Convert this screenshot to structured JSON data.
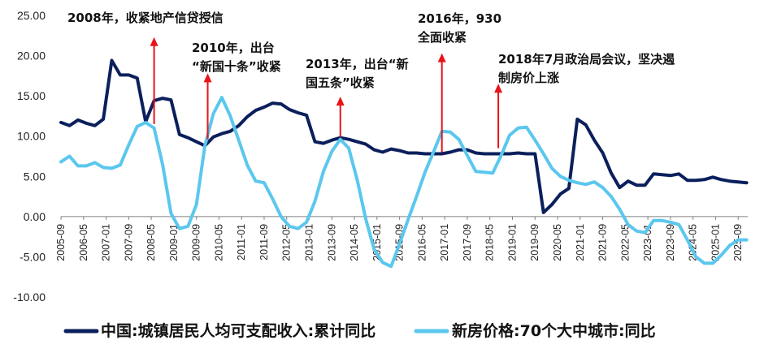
{
  "colors": {
    "series_dark": "#0b1f5c",
    "series_light": "#5bc7ee",
    "arrow": "#e8141a",
    "axis": "#7f7f7f",
    "text": "#111111"
  },
  "chart_data": {
    "type": "line",
    "title": "",
    "xlabel": "",
    "ylabel": "",
    "ylim": [
      -10,
      25
    ],
    "grid": false,
    "legend_position": "bottom",
    "y_ticks": [
      "25.00",
      "20.00",
      "15.00",
      "10.00",
      "5.00",
      "0.00",
      "-5.00",
      "-10.00"
    ],
    "y_tick_values": [
      25,
      20,
      15,
      10,
      5,
      0,
      -5,
      -10
    ],
    "x_ticks": [
      "2005-09",
      "2006-05",
      "2007-01",
      "2007-09",
      "2008-05",
      "2009-01",
      "2009-09",
      "2010-05",
      "2011-01",
      "2011-09",
      "2012-05",
      "2013-01",
      "2013-09",
      "2014-05",
      "2015-01",
      "2015-09",
      "2016-05",
      "2017-01",
      "2017-09",
      "2018-05",
      "2019-01",
      "2019-09",
      "2020-05",
      "2021-01",
      "2021-09",
      "2022-05",
      "2023-01",
      "2023-09",
      "2024-05",
      "2025-01",
      "2025-09"
    ],
    "x_range": [
      2005.666,
      2025.95
    ],
    "series": [
      {
        "name": "中国:城镇居民人均可支配收入:累计同比",
        "color": "#0b1f5c",
        "x": [
          2005.666,
          2005.917,
          2006.167,
          2006.417,
          2006.667,
          2006.917,
          2007.167,
          2007.417,
          2007.667,
          2007.917,
          2008.167,
          2008.417,
          2008.667,
          2008.917,
          2009.167,
          2009.417,
          2009.667,
          2009.917,
          2010.167,
          2010.417,
          2010.667,
          2010.917,
          2011.167,
          2011.417,
          2011.667,
          2011.917,
          2012.167,
          2012.417,
          2012.667,
          2012.917,
          2013.167,
          2013.417,
          2013.667,
          2013.917,
          2014.167,
          2014.417,
          2014.667,
          2014.917,
          2015.167,
          2015.417,
          2015.667,
          2015.917,
          2016.167,
          2016.417,
          2016.667,
          2016.917,
          2017.167,
          2017.417,
          2017.667,
          2017.917,
          2018.167,
          2018.417,
          2018.667,
          2018.917,
          2019.167,
          2019.417,
          2019.667,
          2019.917,
          2020.167,
          2020.417,
          2020.667,
          2020.917,
          2021.167,
          2021.417,
          2021.667,
          2021.917,
          2022.167,
          2022.417,
          2022.667,
          2022.917,
          2023.167,
          2023.417,
          2023.667,
          2023.917,
          2024.167,
          2024.417,
          2024.667,
          2024.917,
          2025.167,
          2025.417,
          2025.667,
          2025.917
        ],
        "y": [
          11.7,
          11.3,
          12.0,
          11.6,
          11.3,
          12.1,
          19.4,
          17.6,
          17.6,
          17.2,
          11.8,
          14.4,
          14.7,
          14.5,
          10.2,
          9.8,
          9.3,
          8.8,
          9.9,
          10.3,
          10.6,
          11.3,
          12.4,
          13.2,
          13.6,
          14.1,
          14.0,
          13.3,
          12.9,
          12.6,
          9.3,
          9.1,
          9.5,
          9.8,
          9.6,
          9.3,
          9.0,
          8.3,
          8.0,
          8.4,
          8.2,
          7.9,
          7.9,
          7.8,
          7.8,
          7.8,
          8.0,
          8.3,
          8.3,
          7.9,
          7.8,
          7.8,
          7.8,
          7.8,
          7.9,
          7.8,
          7.8,
          0.5,
          1.5,
          2.8,
          3.5,
          12.1,
          11.4,
          9.5,
          7.9,
          5.4,
          3.6,
          4.4,
          3.9,
          3.9,
          5.3,
          5.2,
          5.1,
          5.3,
          4.5,
          4.5,
          4.6,
          4.9,
          4.6,
          4.4,
          4.3,
          4.2
        ]
      },
      {
        "name": "新房价格:70个大中城市:同比",
        "color": "#5bc7ee",
        "x": [
          2005.666,
          2005.917,
          2006.167,
          2006.417,
          2006.667,
          2006.917,
          2007.167,
          2007.417,
          2007.667,
          2007.917,
          2008.167,
          2008.417,
          2008.667,
          2008.917,
          2009.167,
          2009.417,
          2009.667,
          2009.917,
          2010.167,
          2010.417,
          2010.667,
          2010.917,
          2011.167,
          2011.417,
          2011.667,
          2011.917,
          2012.167,
          2012.417,
          2012.667,
          2012.917,
          2013.167,
          2013.417,
          2013.667,
          2013.917,
          2014.167,
          2014.417,
          2014.667,
          2014.917,
          2015.167,
          2015.417,
          2015.667,
          2015.917,
          2016.167,
          2016.417,
          2016.667,
          2016.917,
          2017.167,
          2017.417,
          2017.667,
          2017.917,
          2018.167,
          2018.417,
          2018.667,
          2018.917,
          2019.167,
          2019.417,
          2019.667,
          2019.917,
          2020.167,
          2020.417,
          2020.667,
          2020.917,
          2021.167,
          2021.417,
          2021.667,
          2021.917,
          2022.167,
          2022.417,
          2022.667,
          2022.917,
          2023.167,
          2023.417,
          2023.667,
          2023.917,
          2024.167,
          2024.417,
          2024.667,
          2024.917,
          2025.167,
          2025.417,
          2025.667,
          2025.917
        ],
        "y": [
          6.8,
          7.5,
          6.3,
          6.3,
          6.7,
          6.1,
          6.0,
          6.4,
          8.9,
          11.2,
          11.7,
          11.0,
          6.5,
          0.4,
          -1.5,
          -1.2,
          1.5,
          8.8,
          12.8,
          14.8,
          12.5,
          9.5,
          6.4,
          4.4,
          4.2,
          2.2,
          0.0,
          -1.2,
          -1.5,
          -0.7,
          1.9,
          5.6,
          8.1,
          9.6,
          8.5,
          4.5,
          -0.3,
          -4.1,
          -5.7,
          -6.2,
          -3.4,
          -0.4,
          2.5,
          5.5,
          8.0,
          10.6,
          10.5,
          9.6,
          7.6,
          5.6,
          5.5,
          5.4,
          7.6,
          10.1,
          11.0,
          11.1,
          9.5,
          7.8,
          6.0,
          5.0,
          4.5,
          4.2,
          4.0,
          4.3,
          3.6,
          2.5,
          0.9,
          -1.0,
          -1.8,
          -2.0,
          -0.5,
          -0.5,
          -0.7,
          -1.0,
          -2.9,
          -5.0,
          -5.8,
          -5.8,
          -4.8,
          -3.6,
          -2.9,
          -2.9
        ]
      }
    ],
    "annotations": [
      {
        "lines": [
          "2008年，收紧地产信贷授信"
        ],
        "arrow_x": 2008.417,
        "arrow_base_y": 11.5,
        "arrow_tip_y": 22.3
      },
      {
        "lines": [
          "2010年，出台",
          "“新国十条”收紧"
        ],
        "arrow_x": 2010.0,
        "arrow_base_y": 9.6,
        "arrow_tip_y": 17.8
      },
      {
        "lines": [
          "2013年，出台“新",
          "国五条”收紧"
        ],
        "arrow_x": 2013.917,
        "arrow_base_y": 9.9,
        "arrow_tip_y": 14.9
      },
      {
        "lines": [
          "2016年，930",
          "全面收紧"
        ],
        "arrow_x": 2016.917,
        "arrow_base_y": 8.0,
        "arrow_tip_y": 20.3
      },
      {
        "lines": [
          "2018年7月政治局会议，坚决遏",
          "制房价上涨"
        ],
        "arrow_x": 2018.583,
        "arrow_base_y": 8.5,
        "arrow_tip_y": 16.5
      }
    ]
  }
}
